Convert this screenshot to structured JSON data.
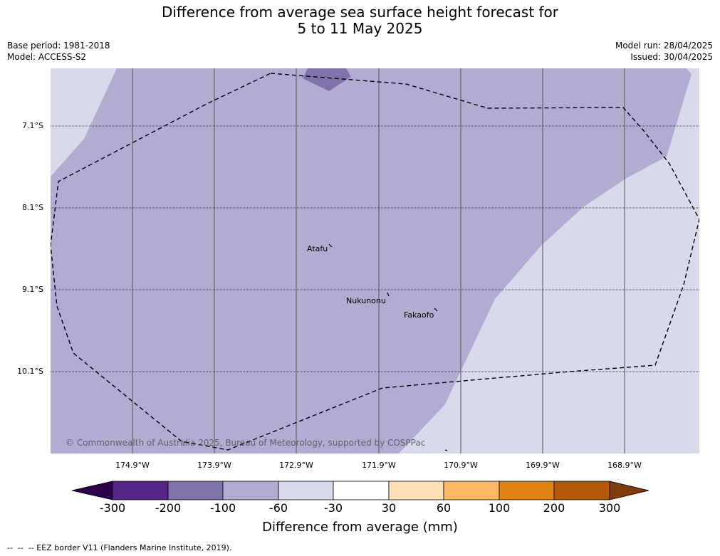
{
  "title_line1": "Difference from average sea surface height forecast for",
  "title_line2": "5 to 11 May 2025",
  "base_period": "Base period: 1981-2018",
  "model": "Model: ACCESS-S2",
  "model_run": "Model run: 28/04/2025",
  "issued": "Issued: 30/04/2025",
  "latitudes": [
    "7.1°S",
    "8.1°S",
    "9.1°S",
    "10.1°S"
  ],
  "longitudes": [
    "174.9°W",
    "173.9°W",
    "172.9°W",
    "171.9°W",
    "170.9°W",
    "169.9°W",
    "168.9°W"
  ],
  "places": {
    "atafu": "Atafu",
    "nukunonu": "Nukunonu",
    "fakaofo": "Fakaofo"
  },
  "copyright": "© Commonwealth of Australia 2025, Bureau of Meteorology, supported by COSPPac",
  "colorbar": {
    "title": "Difference from average (mm)",
    "ticks": [
      "-300",
      "-200",
      "-100",
      "-60",
      "-30",
      "30",
      "60",
      "100",
      "200",
      "300"
    ],
    "colors": {
      "below_-300": "#2d004b",
      "-300_-200": "#542788",
      "-200_-100": "#8073ac",
      "-100_-60": "#b2abd2",
      "-60_-30": "#d8daeb",
      "-30_30": "#ffffff",
      "30_60": "#fee0b6",
      "60_100": "#fdb863",
      "100_200": "#e08214",
      "200_300": "#b35806",
      "above_300": "#7f3b08"
    }
  },
  "eez_legend": "--  --  -- EEZ border V11 (Flanders Marine Institute, 2019)."
}
